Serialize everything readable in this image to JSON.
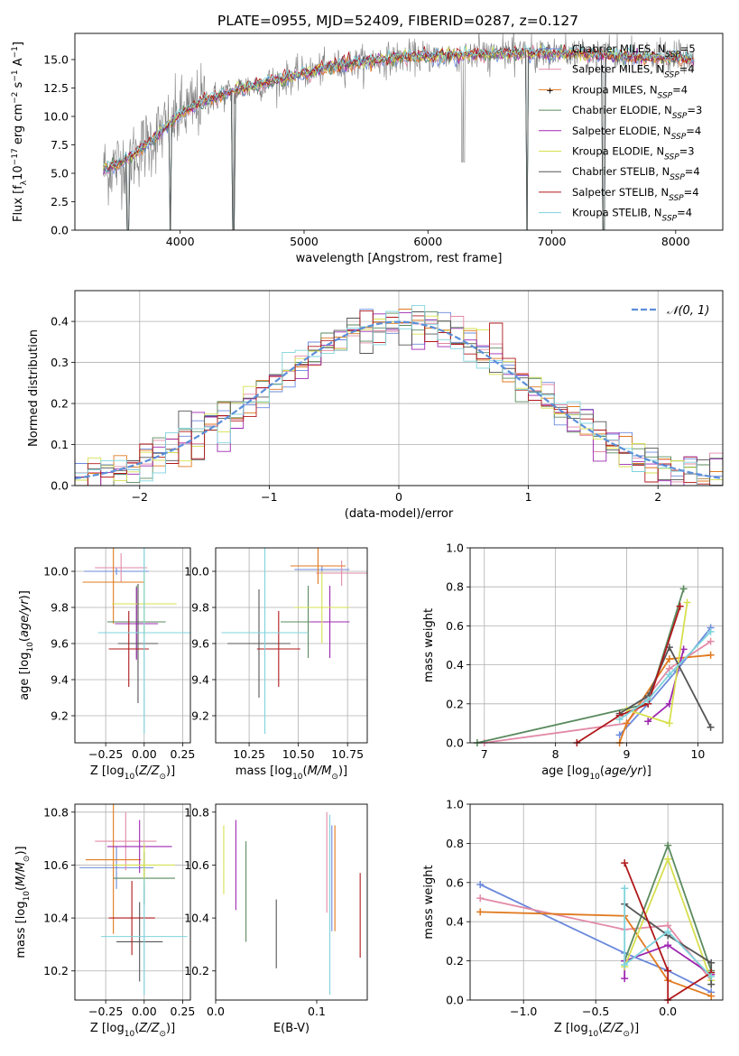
{
  "figure": {
    "title": "PLATE=0955, MJD=52409, FIBERID=0287, z=0.127"
  },
  "colors": {
    "Chabrier MILES": "#6b89db",
    "Salpeter MILES": "#e28aa6",
    "Kroupa MILES": "#e07a1f",
    "Chabrier ELODIE": "#5a8a5e",
    "Salpeter ELODIE": "#9d27b0",
    "Kroupa ELODIE": "#d6e04f",
    "Chabrier STELIB": "#555555",
    "Salpeter STELIB": "#b0181b",
    "Kroupa STELIB": "#7fd3dc",
    "normal_curve": "#5b8fd9",
    "data": "#7f7f7f"
  },
  "chart_data": [
    {
      "id": "spectrum",
      "type": "line",
      "title": "PLATE=0955, MJD=52409, FIBERID=0287, z=0.127",
      "xlabel": "wavelength [Angstrom, rest frame]",
      "ylabel": "Flux [f_λ 10^-17 erg cm^-2 s^-1 A^-1]",
      "xlim": [
        3150,
        8380
      ],
      "ylim": [
        0,
        17.3
      ],
      "xticks": [
        "4000",
        "5000",
        "6000",
        "7000",
        "8000"
      ],
      "yticks": [
        "0.0",
        "2.5",
        "5.0",
        "7.5",
        "10.0",
        "12.5",
        "15.0"
      ],
      "grid": false,
      "legend_position": "top-right",
      "legend": [
        {
          "model": "Chabrier MILES",
          "nssp": "5"
        },
        {
          "model": "Salpeter MILES",
          "nssp": "4"
        },
        {
          "model": "Kroupa MILES",
          "nssp": "4"
        },
        {
          "model": "Chabrier ELODIE",
          "nssp": "3"
        },
        {
          "model": "Salpeter ELODIE",
          "nssp": "4"
        },
        {
          "model": "Kroupa ELODIE",
          "nssp": "3"
        },
        {
          "model": "Chabrier STELIB",
          "nssp": "4"
        },
        {
          "model": "Salpeter STELIB",
          "nssp": "4"
        },
        {
          "model": "Kroupa STELIB",
          "nssp": "4"
        }
      ],
      "continuum": {
        "x": [
          3380,
          3500,
          3650,
          3800,
          4000,
          4200,
          4500,
          4800,
          5000,
          5200,
          5500,
          5800,
          6000,
          6300,
          6600,
          6900,
          7200,
          7500,
          7800,
          8000,
          8150
        ],
        "y": [
          5.3,
          5.8,
          6.8,
          8.2,
          10.2,
          11.4,
          12.5,
          13.2,
          13.8,
          14.3,
          14.8,
          15.2,
          15.3,
          15.4,
          15.5,
          15.6,
          15.5,
          15.3,
          15.2,
          15.1,
          15.0
        ]
      },
      "line_dips": [
        {
          "x": 3580,
          "y": 0.0
        },
        {
          "x": 3920,
          "y": 0.0
        },
        {
          "x": 4430,
          "y": 0.0
        },
        {
          "x": 6800,
          "y": 0.0
        },
        {
          "x": 7420,
          "y": 0.0
        }
      ]
    },
    {
      "id": "residual_hist",
      "type": "line",
      "xlabel": "(data-model)/error",
      "ylabel": "Normed distribution",
      "xlim": [
        -2.5,
        2.5
      ],
      "ylim": [
        0,
        0.475
      ],
      "xticks": [
        "−2",
        "−1",
        "0",
        "1",
        "2"
      ],
      "yticks": [
        "0.0",
        "0.1",
        "0.2",
        "0.3",
        "0.4"
      ],
      "grid": true,
      "legend_position": "top-right",
      "legend": [
        {
          "name": "𝒩(0, 1)"
        }
      ],
      "normal_mu": 0,
      "normal_sigma": 1,
      "bin_width": 0.1
    },
    {
      "id": "age_vs_Z",
      "type": "scatter",
      "xlabel": "Z [log10(Z/Z⊙)]",
      "ylabel": "age [log10(age/yr)]",
      "xlim": [
        -0.45,
        0.3
      ],
      "ylim": [
        9.05,
        10.13
      ],
      "xticks": [
        "−0.25",
        "0.00",
        "0.25"
      ],
      "yticks": [
        "9.2",
        "9.4",
        "9.6",
        "9.8",
        "10.0"
      ],
      "grid": true,
      "points": [
        {
          "model": "Chabrier MILES",
          "x": -0.18,
          "xerr": 0.21,
          "y": 10.0,
          "yerr": 0.02
        },
        {
          "model": "Salpeter MILES",
          "x": -0.15,
          "xerr": 0.17,
          "y": 10.02,
          "yerr": 0.08
        },
        {
          "model": "Kroupa MILES",
          "x": -0.2,
          "xerr": 0.2,
          "y": 9.94,
          "yerr": 0.23
        },
        {
          "model": "Chabrier ELODIE",
          "x": -0.05,
          "xerr": 0.19,
          "y": 9.72,
          "yerr": 0.2
        },
        {
          "model": "Salpeter ELODIE",
          "x": -0.05,
          "xerr": 0.14,
          "y": 9.71,
          "yerr": 0.2
        },
        {
          "model": "Kroupa ELODIE",
          "x": 0.0,
          "xerr": 0.21,
          "y": 9.82,
          "yerr": 0.18
        },
        {
          "model": "Chabrier STELIB",
          "x": -0.04,
          "xerr": 0.13,
          "y": 9.6,
          "yerr": 0.33
        },
        {
          "model": "Salpeter STELIB",
          "x": -0.1,
          "xerr": 0.13,
          "y": 9.57,
          "yerr": 0.21
        },
        {
          "model": "Kroupa STELIB",
          "x": 0.0,
          "xerr": 0.3,
          "y": 9.66,
          "yerr": 0.56
        }
      ]
    },
    {
      "id": "age_vs_mass",
      "type": "scatter",
      "xlabel": "mass [log10(M/M⊙)]",
      "ylabel": "",
      "xlim": [
        10.08,
        10.85
      ],
      "ylim": [
        9.05,
        10.13
      ],
      "xticks": [
        "10.25",
        "10.50",
        "10.75"
      ],
      "yticks": [
        "9.2",
        "9.4",
        "9.6",
        "9.8",
        "10.0"
      ],
      "grid": true,
      "points": [
        {
          "model": "Chabrier MILES",
          "x": 10.62,
          "xerr": 0.14,
          "y": 10.01,
          "yerr": 0.02
        },
        {
          "model": "Salpeter MILES",
          "x": 10.72,
          "xerr": 0.13,
          "y": 9.99,
          "yerr": 0.07
        },
        {
          "model": "Kroupa MILES",
          "x": 10.6,
          "xerr": 0.14,
          "y": 10.03,
          "yerr": 0.1
        },
        {
          "model": "Chabrier ELODIE",
          "x": 10.55,
          "xerr": 0.14,
          "y": 9.72,
          "yerr": 0.2
        },
        {
          "model": "Salpeter ELODIE",
          "x": 10.66,
          "xerr": 0.1,
          "y": 9.72,
          "yerr": 0.2
        },
        {
          "model": "Kroupa ELODIE",
          "x": 10.62,
          "xerr": 0.14,
          "y": 9.8,
          "yerr": 0.2
        },
        {
          "model": "Chabrier STELIB",
          "x": 10.3,
          "xerr": 0.16,
          "y": 9.6,
          "yerr": 0.3
        },
        {
          "model": "Salpeter STELIB",
          "x": 10.4,
          "xerr": 0.11,
          "y": 9.57,
          "yerr": 0.21
        },
        {
          "model": "Kroupa STELIB",
          "x": 10.33,
          "xerr": 0.22,
          "y": 9.66,
          "yerr": 0.56
        }
      ]
    },
    {
      "id": "mass_weight_vs_age",
      "type": "line",
      "xlabel": "age [log10(age/yr)]",
      "ylabel": "mass weight",
      "xlim": [
        6.8,
        10.35
      ],
      "ylim": [
        0,
        1.0
      ],
      "xticks": [
        "7",
        "8",
        "9",
        "10"
      ],
      "yticks": [
        "0.0",
        "0.2",
        "0.4",
        "0.6",
        "0.8",
        "1.0"
      ],
      "grid": true,
      "series": [
        {
          "model": "Chabrier MILES",
          "x": [
            8.9,
            9.3,
            9.7,
            10.18
          ],
          "y": [
            0.04,
            0.2,
            0.37,
            0.59
          ]
        },
        {
          "model": "Salpeter MILES",
          "x": [
            7.0,
            9.0,
            9.6,
            10.18
          ],
          "y": [
            0.0,
            0.1,
            0.38,
            0.52
          ]
        },
        {
          "model": "Kroupa MILES",
          "x": [
            8.9,
            9.0,
            9.6,
            10.18
          ],
          "y": [
            0.0,
            0.1,
            0.43,
            0.45
          ]
        },
        {
          "model": "Chabrier ELODIE",
          "x": [
            6.9,
            9.3,
            9.8
          ],
          "y": [
            0.0,
            0.2,
            0.79
          ]
        },
        {
          "model": "Salpeter ELODIE",
          "x": [
            9.3,
            9.6,
            9.8
          ],
          "y": [
            0.11,
            0.2,
            0.48
          ]
        },
        {
          "model": "Kroupa ELODIE",
          "x": [
            9.0,
            9.6,
            9.85
          ],
          "y": [
            0.17,
            0.1,
            0.72
          ]
        },
        {
          "model": "Chabrier STELIB",
          "x": [
            8.9,
            9.3,
            9.6,
            10.18
          ],
          "y": [
            0.15,
            0.24,
            0.49,
            0.08
          ]
        },
        {
          "model": "Salpeter STELIB",
          "x": [
            8.3,
            8.9,
            9.3,
            9.75
          ],
          "y": [
            0.0,
            0.14,
            0.2,
            0.7
          ]
        },
        {
          "model": "Kroupa STELIB",
          "x": [
            8.9,
            9.3,
            9.6,
            10.18
          ],
          "y": [
            0.12,
            0.22,
            0.35,
            0.57
          ]
        }
      ]
    },
    {
      "id": "mass_vs_Z",
      "type": "scatter",
      "xlabel": "Z [log10(Z/Z⊙)]",
      "ylabel": "mass [log10(M/M⊙)]",
      "xlim": [
        -0.45,
        0.3
      ],
      "ylim": [
        10.09,
        10.83
      ],
      "xticks": [
        "−0.25",
        "0.00",
        "0.25"
      ],
      "yticks": [
        "10.2",
        "10.4",
        "10.6",
        "10.8"
      ],
      "grid": true,
      "points": [
        {
          "model": "Chabrier MILES",
          "x": -0.18,
          "xerr": 0.24,
          "y": 10.59,
          "yerr": 0.08
        },
        {
          "model": "Salpeter MILES",
          "x": -0.12,
          "xerr": 0.2,
          "y": 10.69,
          "yerr": 0.11
        },
        {
          "model": "Kroupa MILES",
          "x": -0.2,
          "xerr": 0.18,
          "y": 10.62,
          "yerr": 0.28
        },
        {
          "model": "Chabrier ELODIE",
          "x": 0.0,
          "xerr": 0.2,
          "y": 10.55,
          "yerr": 0.1
        },
        {
          "model": "Salpeter ELODIE",
          "x": -0.03,
          "xerr": 0.21,
          "y": 10.67,
          "yerr": 0.1
        },
        {
          "model": "Kroupa ELODIE",
          "x": 0.0,
          "xerr": 0.2,
          "y": 10.6,
          "yerr": 0.08
        },
        {
          "model": "Chabrier STELIB",
          "x": -0.03,
          "xerr": 0.15,
          "y": 10.31,
          "yerr": 0.15
        },
        {
          "model": "Salpeter STELIB",
          "x": -0.08,
          "xerr": 0.15,
          "y": 10.4,
          "yerr": 0.14
        },
        {
          "model": "Kroupa STELIB",
          "x": 0.0,
          "xerr": 0.28,
          "y": 10.33,
          "yerr": 0.22
        }
      ]
    },
    {
      "id": "mass_vs_ebv",
      "type": "scatter",
      "xlabel": "E(B-V)",
      "ylabel": "",
      "xlim": [
        0,
        0.15
      ],
      "ylim": [
        10.09,
        10.83
      ],
      "xticks": [
        "0.0",
        "0.1"
      ],
      "yticks": [
        "10.2",
        "10.4",
        "10.6",
        "10.8"
      ],
      "grid": false,
      "points": [
        {
          "model": "Chabrier MILES",
          "x": 0.115,
          "y": 10.55,
          "yerr": 0.2
        },
        {
          "model": "Salpeter MILES",
          "x": 0.11,
          "y": 10.61,
          "yerr": 0.19
        },
        {
          "model": "Kroupa MILES",
          "x": 0.118,
          "y": 10.55,
          "yerr": 0.2
        },
        {
          "model": "Chabrier ELODIE",
          "x": 0.03,
          "y": 10.5,
          "yerr": 0.19
        },
        {
          "model": "Salpeter ELODIE",
          "x": 0.02,
          "y": 10.6,
          "yerr": 0.17
        },
        {
          "model": "Kroupa ELODIE",
          "x": 0.008,
          "y": 10.62,
          "yerr": 0.13
        },
        {
          "model": "Chabrier STELIB",
          "x": 0.06,
          "y": 10.34,
          "yerr": 0.13
        },
        {
          "model": "Salpeter STELIB",
          "x": 0.143,
          "y": 10.41,
          "yerr": 0.16
        },
        {
          "model": "Kroupa STELIB",
          "x": 0.113,
          "y": 10.45,
          "yerr": 0.34
        }
      ]
    },
    {
      "id": "mass_weight_vs_Z",
      "type": "line",
      "xlabel": "Z [log10(Z/Z⊙)]",
      "ylabel": "mass weight",
      "xlim": [
        -1.37,
        0.38
      ],
      "ylim": [
        0,
        1.0
      ],
      "xticks": [
        "−1.0",
        "−0.5",
        "0.0"
      ],
      "yticks": [
        "0.0",
        "0.2",
        "0.4",
        "0.6",
        "0.8",
        "1.0"
      ],
      "grid": true,
      "series": [
        {
          "model": "Chabrier MILES",
          "x": [
            -1.3,
            -0.3,
            0.0,
            0.3
          ],
          "y": [
            0.59,
            0.24,
            0.15,
            0.04
          ]
        },
        {
          "model": "Salpeter MILES",
          "x": [
            -1.3,
            -0.3,
            0.0,
            0.3
          ],
          "y": [
            0.52,
            0.36,
            0.38,
            0.1
          ]
        },
        {
          "model": "Kroupa MILES",
          "x": [
            -1.3,
            -0.3,
            0.0,
            0.3
          ],
          "y": [
            0.45,
            0.43,
            0.1,
            0.02
          ]
        },
        {
          "model": "Chabrier ELODIE",
          "x": [
            -0.3,
            0.0,
            0.3
          ],
          "y": [
            0.2,
            0.79,
            0.15
          ]
        },
        {
          "model": "Salpeter ELODIE",
          "x": [
            -0.3,
            -0.3,
            0.0,
            0.3
          ],
          "y": [
            0.11,
            0.2,
            0.28,
            0.13
          ]
        },
        {
          "model": "Kroupa ELODIE",
          "x": [
            -0.3,
            0.0,
            0.3
          ],
          "y": [
            0.17,
            0.72,
            0.1
          ]
        },
        {
          "model": "Chabrier STELIB",
          "x": [
            -0.3,
            0.0,
            0.3,
            0.3
          ],
          "y": [
            0.49,
            0.33,
            0.19,
            0.08
          ]
        },
        {
          "model": "Salpeter STELIB",
          "x": [
            -0.3,
            0.0,
            0.0,
            0.3
          ],
          "y": [
            0.7,
            0.15,
            0.0,
            0.14
          ]
        },
        {
          "model": "Kroupa STELIB",
          "x": [
            -0.3,
            -0.3,
            0.0,
            0.3
          ],
          "y": [
            0.57,
            0.18,
            0.35,
            0.12
          ]
        }
      ]
    }
  ]
}
